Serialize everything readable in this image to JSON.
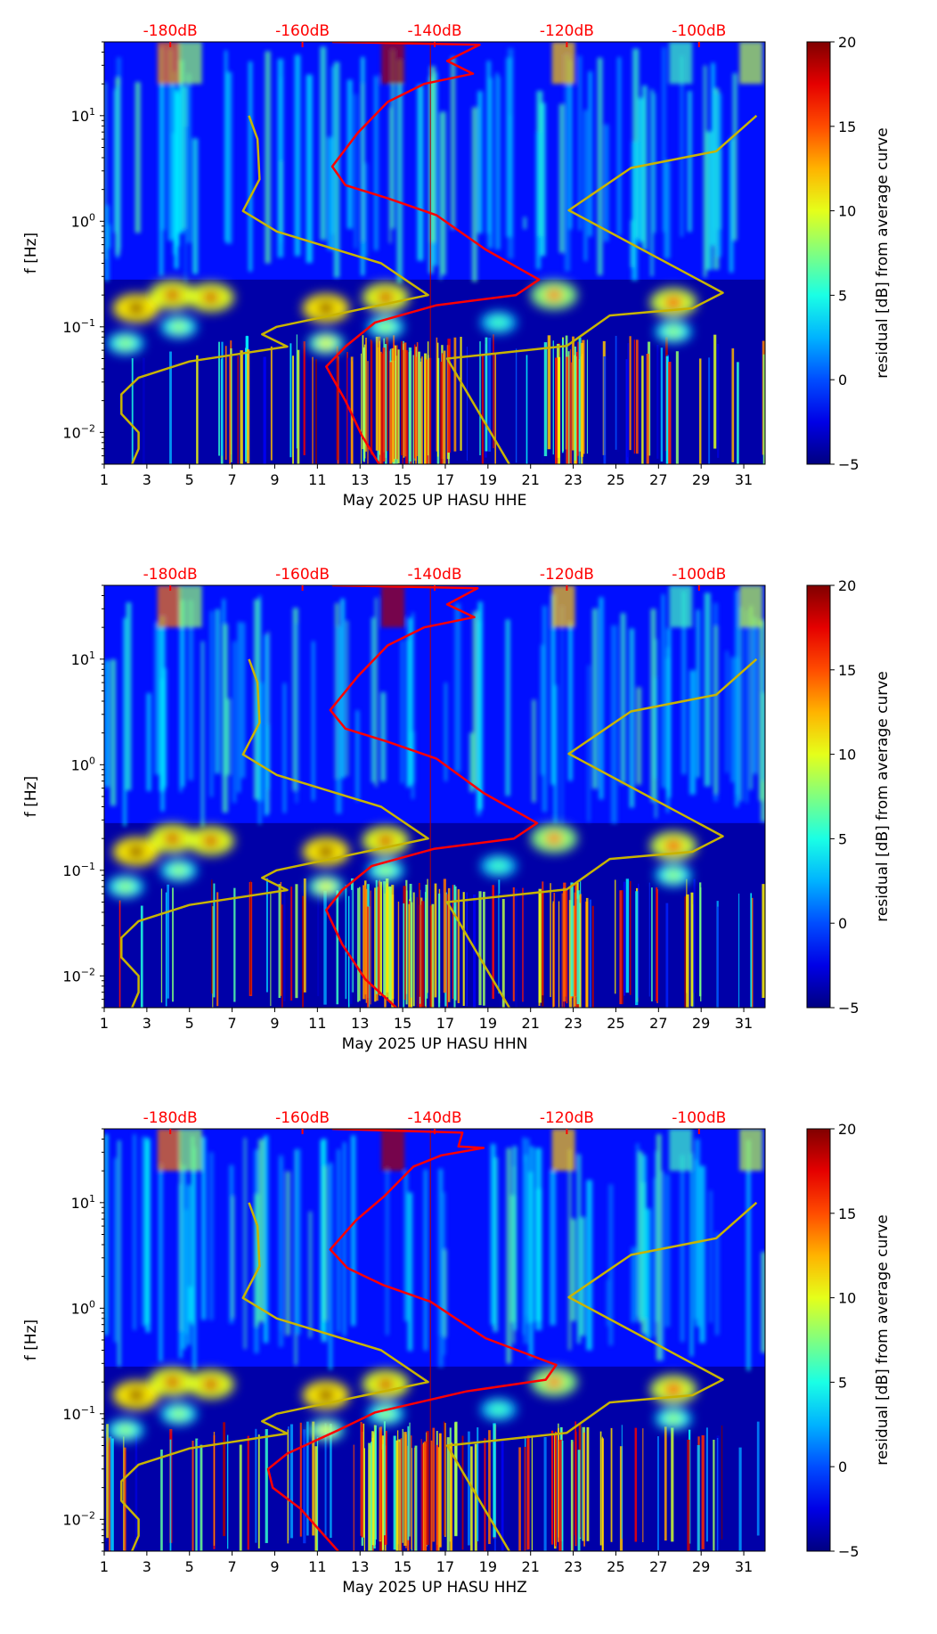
{
  "colors": {
    "nlnm_nhnm": "#c8b400",
    "average_curve": "#ff0000",
    "top_axis": "#ff0000"
  },
  "chart_data": [
    {
      "type": "heatmap",
      "channel": "HHE",
      "xlabel": "May 2025 UP HASU  HHE",
      "ylabel": "f [Hz]",
      "xlim": [
        1,
        32
      ],
      "ylim": [
        0.005,
        50
      ],
      "yscale": "log",
      "xticks": [
        "1",
        "3",
        "5",
        "7",
        "9",
        "11",
        "13",
        "15",
        "17",
        "19",
        "21",
        "23",
        "25",
        "27",
        "29",
        "31"
      ],
      "yticks": [
        {
          "base": "10",
          "exp": "−2",
          "value": 0.01
        },
        {
          "base": "10",
          "exp": "−1",
          "value": 0.1
        },
        {
          "base": "10",
          "exp": "0",
          "value": 1
        },
        {
          "base": "10",
          "exp": "1",
          "value": 10
        }
      ],
      "top_axis": {
        "labels": [
          "-180dB",
          "-160dB",
          "-140dB",
          "-120dB",
          "-100dB"
        ],
        "values": [
          -180,
          -160,
          -140,
          -120,
          -100
        ],
        "day_at_minus180": 4.1,
        "days_per_20dB": 6.2
      },
      "colorbar": {
        "label": "residual [dB] from average curve",
        "ticks": [
          "−5",
          "0",
          "5",
          "10",
          "15",
          "20"
        ],
        "range": [
          -5,
          20
        ]
      },
      "average_curve": {
        "freq": [
          50,
          47,
          33,
          25,
          20,
          13.5,
          6.9,
          3.3,
          2.2,
          1.65,
          1.14,
          0.54,
          0.28,
          0.2,
          0.16,
          0.11,
          0.065,
          0.042,
          0.02,
          0.0093,
          0.005
        ],
        "db": [
          -155.5,
          -133.2,
          -138.1,
          -134.2,
          -141.6,
          -147.1,
          -151.6,
          -155.5,
          -153.5,
          -147.1,
          -139.7,
          -132.3,
          -124.2,
          -127.7,
          -139.7,
          -149.0,
          -153.5,
          -156.4,
          -153.5,
          -151.0,
          -148.4
        ]
      },
      "hotspots": [
        [
          2.5,
          0.15,
          20
        ],
        [
          4.2,
          0.2,
          18
        ],
        [
          6,
          0.19,
          18
        ],
        [
          11.4,
          0.15,
          20
        ],
        [
          14.2,
          0.19,
          18
        ],
        [
          22.1,
          0.2,
          14
        ],
        [
          27.7,
          0.17,
          17
        ],
        [
          11.4,
          0.07,
          10
        ],
        [
          4.5,
          0.1,
          8
        ],
        [
          2,
          0.07,
          8
        ],
        [
          14.2,
          0.1,
          8
        ],
        [
          27.7,
          0.09,
          8
        ],
        [
          19.5,
          0.11,
          6
        ]
      ]
    },
    {
      "type": "heatmap",
      "channel": "HHN",
      "xlabel": "May 2025 UP HASU  HHN",
      "ylabel": "f [Hz]",
      "xlim": [
        1,
        32
      ],
      "ylim": [
        0.005,
        50
      ],
      "yscale": "log",
      "xticks": [
        "1",
        "3",
        "5",
        "7",
        "9",
        "11",
        "13",
        "15",
        "17",
        "19",
        "21",
        "23",
        "25",
        "27",
        "29",
        "31"
      ],
      "yticks": [
        {
          "base": "10",
          "exp": "−2",
          "value": 0.01
        },
        {
          "base": "10",
          "exp": "−1",
          "value": 0.1
        },
        {
          "base": "10",
          "exp": "0",
          "value": 1
        },
        {
          "base": "10",
          "exp": "1",
          "value": 10
        }
      ],
      "top_axis": {
        "labels": [
          "-180dB",
          "-160dB",
          "-140dB",
          "-120dB",
          "-100dB"
        ],
        "values": [
          -180,
          -160,
          -140,
          -120,
          -100
        ],
        "day_at_minus180": 4.1,
        "days_per_20dB": 6.2
      },
      "colorbar": {
        "label": "residual [dB] from average curve",
        "ticks": [
          "−5",
          "0",
          "5",
          "10",
          "15",
          "20"
        ],
        "range": [
          -5,
          20
        ]
      },
      "average_curve": {
        "freq": [
          50,
          47,
          33,
          25,
          20,
          13.5,
          6.9,
          3.3,
          2.2,
          1.65,
          1.14,
          0.54,
          0.28,
          0.2,
          0.16,
          0.11,
          0.065,
          0.042,
          0.02,
          0.0093,
          0.005
        ],
        "db": [
          -155.5,
          -133.5,
          -138.1,
          -134.0,
          -141.6,
          -147.1,
          -151.6,
          -155.8,
          -153.5,
          -147.1,
          -139.7,
          -132.6,
          -124.5,
          -128.0,
          -140.0,
          -149.5,
          -154.0,
          -156.4,
          -154.0,
          -150.5,
          -145.8
        ]
      },
      "hotspots": [
        [
          2.5,
          0.15,
          20
        ],
        [
          4.2,
          0.2,
          18
        ],
        [
          6,
          0.19,
          18
        ],
        [
          11.4,
          0.15,
          20
        ],
        [
          14.2,
          0.19,
          18
        ],
        [
          22.1,
          0.2,
          14
        ],
        [
          27.7,
          0.17,
          17
        ],
        [
          11.4,
          0.07,
          10
        ],
        [
          4.5,
          0.1,
          8
        ],
        [
          2,
          0.07,
          8
        ],
        [
          14.2,
          0.1,
          8
        ],
        [
          27.7,
          0.09,
          8
        ],
        [
          19.5,
          0.11,
          6
        ]
      ]
    },
    {
      "type": "heatmap",
      "channel": "HHZ",
      "xlabel": "May 2025 UP HASU  HHZ",
      "ylabel": "f [Hz]",
      "xlim": [
        1,
        32
      ],
      "ylim": [
        0.005,
        50
      ],
      "yscale": "log",
      "xticks": [
        "1",
        "3",
        "5",
        "7",
        "9",
        "11",
        "13",
        "15",
        "17",
        "19",
        "21",
        "23",
        "25",
        "27",
        "29",
        "31"
      ],
      "yticks": [
        {
          "base": "10",
          "exp": "−2",
          "value": 0.01
        },
        {
          "base": "10",
          "exp": "−1",
          "value": 0.1
        },
        {
          "base": "10",
          "exp": "0",
          "value": 1
        },
        {
          "base": "10",
          "exp": "1",
          "value": 10
        }
      ],
      "top_axis": {
        "labels": [
          "-180dB",
          "-160dB",
          "-140dB",
          "-120dB",
          "-100dB"
        ],
        "values": [
          -180,
          -160,
          -140,
          -120,
          -100
        ],
        "day_at_minus180": 4.1,
        "days_per_20dB": 6.2
      },
      "colorbar": {
        "label": "residual [dB] from average curve",
        "ticks": [
          "−5",
          "0",
          "5",
          "10",
          "15",
          "20"
        ],
        "range": [
          -5,
          20
        ]
      },
      "average_curve": {
        "freq": [
          50,
          46,
          34,
          33,
          28,
          22,
          11.4,
          6.8,
          3.6,
          2.4,
          1.65,
          1.15,
          0.52,
          0.29,
          0.21,
          0.163,
          0.103,
          0.07,
          0.042,
          0.03,
          0.02,
          0.0126,
          0.005
        ],
        "db": [
          -155.5,
          -135.8,
          -136.4,
          -132.6,
          -139.0,
          -143.2,
          -147.7,
          -151.9,
          -155.8,
          -153.2,
          -147.7,
          -140.6,
          -132.3,
          -121.6,
          -123.2,
          -135.2,
          -149.0,
          -154.6,
          -162.3,
          -165.2,
          -164.5,
          -160.3,
          -154.6
        ]
      },
      "hotspots": [
        [
          2.5,
          0.15,
          20
        ],
        [
          4.2,
          0.2,
          18
        ],
        [
          6,
          0.19,
          18
        ],
        [
          11.4,
          0.15,
          20
        ],
        [
          14.2,
          0.19,
          18
        ],
        [
          22.1,
          0.2,
          14
        ],
        [
          27.7,
          0.17,
          17
        ],
        [
          11.4,
          0.07,
          10
        ],
        [
          4.5,
          0.1,
          8
        ],
        [
          2,
          0.07,
          8
        ],
        [
          14.2,
          0.1,
          8
        ],
        [
          27.7,
          0.09,
          8
        ],
        [
          19.5,
          0.11,
          6
        ]
      ]
    }
  ],
  "reference_models": {
    "nlnm": {
      "freq": [
        10,
        6,
        2.5,
        1.25,
        0.8,
        0.4,
        0.2,
        0.1,
        0.085,
        0.065,
        0.047,
        0.033,
        0.023,
        0.015,
        0.01,
        0.007,
        0.005
      ],
      "db": [
        -168.1,
        -166.8,
        -166.5,
        -169.0,
        -163.9,
        -148.1,
        -141.0,
        -163.9,
        -166.1,
        -162.3,
        -177.1,
        -184.8,
        -187.4,
        -187.4,
        -184.8,
        -184.8,
        -185.8
      ]
    },
    "nhnm": {
      "freq": [
        10,
        4.6,
        3.2,
        1.27,
        0.21,
        0.15,
        0.128,
        0.066,
        0.05,
        0.005
      ],
      "db": [
        -91.3,
        -97.4,
        -110.3,
        -119.7,
        -96.4,
        -101.0,
        -113.5,
        -120.0,
        -138.1,
        -128.7
      ]
    }
  }
}
